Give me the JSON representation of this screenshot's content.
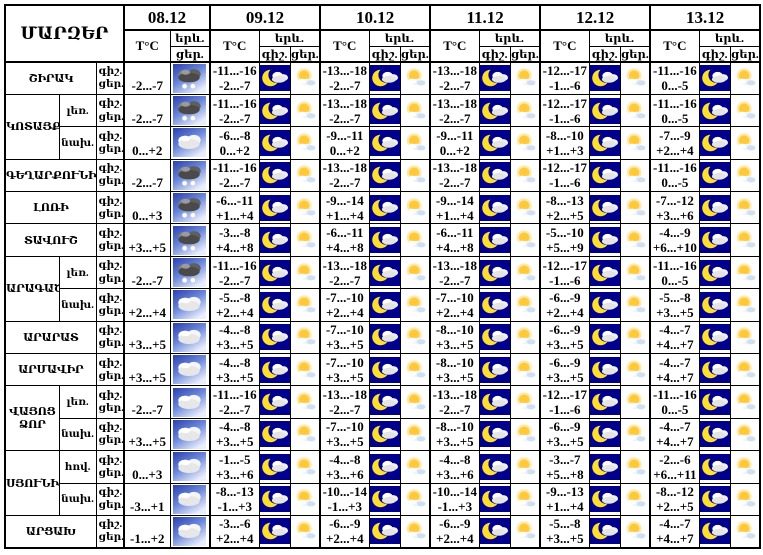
{
  "title": "ՄԱՐԶԵՐ",
  "dates": [
    "08.12",
    "09.12",
    "10.12",
    "11.12",
    "12.12",
    "13.12"
  ],
  "labels": {
    "temp": "T°C",
    "phen": "երև.",
    "night": "գիշ.",
    "day": "ցեր."
  },
  "icons": {
    "night": "moon-cloud",
    "day": "sun-cloud"
  },
  "colors": {
    "night_bg": "#00008c",
    "moon": "#ffdf2e",
    "sun": "#ffc93a",
    "grid": "#000000",
    "day_icon_bg": "#ffffff"
  },
  "rows": [
    {
      "region": "ՇԻՐԱԿ",
      "span": 1,
      "sub": null,
      "first_day_temp": "-2...-7",
      "first_day_icon": "dark-snow-cloud",
      "cols": [
        [
          "-11...-16",
          "-2...-7"
        ],
        [
          "-13...-18",
          "-2...-7"
        ],
        [
          "-13...-18",
          "-2...-7"
        ],
        [
          "-12...-17",
          "-1...-6"
        ],
        [
          "-11...-16",
          "0...-5"
        ]
      ]
    },
    {
      "region": "ԿՈՏԱՅՔ",
      "span": 2,
      "sub": "լեռ.",
      "first_day_temp": "-2...-7",
      "first_day_icon": "dark-snow-cloud",
      "cols": [
        [
          "-11...-16",
          "-2...-7"
        ],
        [
          "-13...-18",
          "-2...-7"
        ],
        [
          "-13...-18",
          "-2...-7"
        ],
        [
          "-12...-17",
          "-1...-6"
        ],
        [
          "-11...-16",
          "0...-5"
        ]
      ]
    },
    {
      "region": null,
      "span": 1,
      "sub": "նախ.",
      "first_day_temp": "0...+2",
      "first_day_icon": "white-cloud",
      "cols": [
        [
          "-6...-8",
          "0...+2"
        ],
        [
          "-9...-11",
          "0...+2"
        ],
        [
          "-9...-11",
          "0...+2"
        ],
        [
          "-8...-10",
          "+1...+3"
        ],
        [
          "-7...-9",
          "+2...+4"
        ]
      ]
    },
    {
      "region": "ԳԵՂԱՐՔՈՒՆԻՔ",
      "span": 1,
      "sub": null,
      "first_day_temp": "-2...-7",
      "first_day_icon": "dark-snow-cloud",
      "cols": [
        [
          "-11...-16",
          "-2...-7"
        ],
        [
          "-13...-18",
          "-2...-7"
        ],
        [
          "-13...-18",
          "-2...-7"
        ],
        [
          "-12...-17",
          "-1...-6"
        ],
        [
          "-11...-16",
          "0...-5"
        ]
      ]
    },
    {
      "region": "ԼՈՌԻ",
      "span": 1,
      "sub": null,
      "first_day_temp": "0...+3",
      "first_day_icon": "dark-snow-cloud",
      "cols": [
        [
          "-6...-11",
          "+1...+4"
        ],
        [
          "-9...-14",
          "+1...+4"
        ],
        [
          "-9...-14",
          "+1...+4"
        ],
        [
          "-8...-13",
          "+2...+5"
        ],
        [
          "-7...-12",
          "+3...+6"
        ]
      ]
    },
    {
      "region": "ՏԱՎՈՒՇ",
      "span": 1,
      "sub": null,
      "first_day_temp": "+3...+5",
      "first_day_icon": "dark-snow-cloud",
      "cols": [
        [
          "-3...-8",
          "+4...+8"
        ],
        [
          "-6...-11",
          "+4...+8"
        ],
        [
          "-6...-11",
          "+4...+8"
        ],
        [
          "-5...-10",
          "+5...+9"
        ],
        [
          "-4...-9",
          "+6...+10"
        ]
      ]
    },
    {
      "region": "ԱՐԱԳԱԾՈՏՆ",
      "span": 2,
      "sub": "լեռ.",
      "first_day_temp": "-2...-7",
      "first_day_icon": "dark-snow-cloud",
      "cols": [
        [
          "-11...-16",
          "-2...-7"
        ],
        [
          "-13...-18",
          "-2...-7"
        ],
        [
          "-13...-18",
          "-2...-7"
        ],
        [
          "-12...-17",
          "-1...-6"
        ],
        [
          "-11...-16",
          "0...-5"
        ]
      ]
    },
    {
      "region": null,
      "span": 1,
      "sub": "նախ.",
      "first_day_temp": "+2...+4",
      "first_day_icon": "white-cloud",
      "cols": [
        [
          "-5...-8",
          "+2...+4"
        ],
        [
          "-7...-10",
          "+2...+4"
        ],
        [
          "-7...-10",
          "+2...+4"
        ],
        [
          "-6...-9",
          "+2...+4"
        ],
        [
          "-5...-8",
          "+3...+5"
        ]
      ]
    },
    {
      "region": "ԱՐԱՐԱՏ",
      "span": 1,
      "sub": null,
      "first_day_temp": "+3...+5",
      "first_day_icon": "white-cloud",
      "cols": [
        [
          "-4...-8",
          "+3...+5"
        ],
        [
          "-7...-10",
          "+3...+5"
        ],
        [
          "-8...-10",
          "+3...+5"
        ],
        [
          "-6...-9",
          "+3...+5"
        ],
        [
          "-4...-7",
          "+4...+7"
        ]
      ]
    },
    {
      "region": "ԱՐՄԱՎԻՐ",
      "span": 1,
      "sub": null,
      "first_day_temp": "+3...+5",
      "first_day_icon": "white-cloud",
      "cols": [
        [
          "-4...-8",
          "+3...+5"
        ],
        [
          "-7...-10",
          "+3...+5"
        ],
        [
          "-8...-10",
          "+3...+5"
        ],
        [
          "-6...-9",
          "+3...+5"
        ],
        [
          "-4...-7",
          "+4...+7"
        ]
      ]
    },
    {
      "region": "ՎԱՅՈՑ ՁՈՐ",
      "span": 2,
      "sub": "լեռ.",
      "first_day_temp": "-2...-7",
      "first_day_icon": "white-cloud",
      "cols": [
        [
          "-11...-16",
          "-2...-7"
        ],
        [
          "-13...-18",
          "-2...-7"
        ],
        [
          "-13...-18",
          "-2...-7"
        ],
        [
          "-12...-17",
          "-1...-6"
        ],
        [
          "-11...-16",
          "0...-5"
        ]
      ]
    },
    {
      "region": null,
      "span": 1,
      "sub": "նախ.",
      "first_day_temp": "+3...+5",
      "first_day_icon": "white-cloud",
      "cols": [
        [
          "-4...-8",
          "+3...+5"
        ],
        [
          "-7...-10",
          "+3...+5"
        ],
        [
          "-8...-10",
          "+3...+5"
        ],
        [
          "-6...-9",
          "+3...+5"
        ],
        [
          "-4...-7",
          "+4...+7"
        ]
      ]
    },
    {
      "region": "ՍՅՈՒՆԻՔ",
      "span": 2,
      "sub": "հով.",
      "first_day_temp": "0...+3",
      "first_day_icon": "white-cloud",
      "cols": [
        [
          "-1...-5",
          "+3...+6"
        ],
        [
          "-4...-8",
          "+3...+6"
        ],
        [
          "-4...-8",
          "+3...+6"
        ],
        [
          "-3...-7",
          "+5...+8"
        ],
        [
          "-2...-6",
          "+6...+11"
        ]
      ]
    },
    {
      "region": null,
      "span": 1,
      "sub": "նախ.",
      "first_day_temp": "-3...+1",
      "first_day_icon": "white-cloud",
      "cols": [
        [
          "-8...-13",
          "-1...+3"
        ],
        [
          "-10...-14",
          "-1...+3"
        ],
        [
          "-10...-14",
          "-1...+3"
        ],
        [
          "-9...-13",
          "+1...+4"
        ],
        [
          "-8...-12",
          "+2...+5"
        ]
      ]
    },
    {
      "region": "ԱՐՑԱԽ",
      "span": 1,
      "sub": null,
      "first_day_temp": "-1...+2",
      "first_day_icon": "white-cloud",
      "cols": [
        [
          "-3...-6",
          "+2...+4"
        ],
        [
          "-6...-9",
          "+2...+4"
        ],
        [
          "-6...-9",
          "+2...+4"
        ],
        [
          "-5...-8",
          "+3...+5"
        ],
        [
          "-4...-7",
          "+4...+7"
        ]
      ]
    }
  ]
}
